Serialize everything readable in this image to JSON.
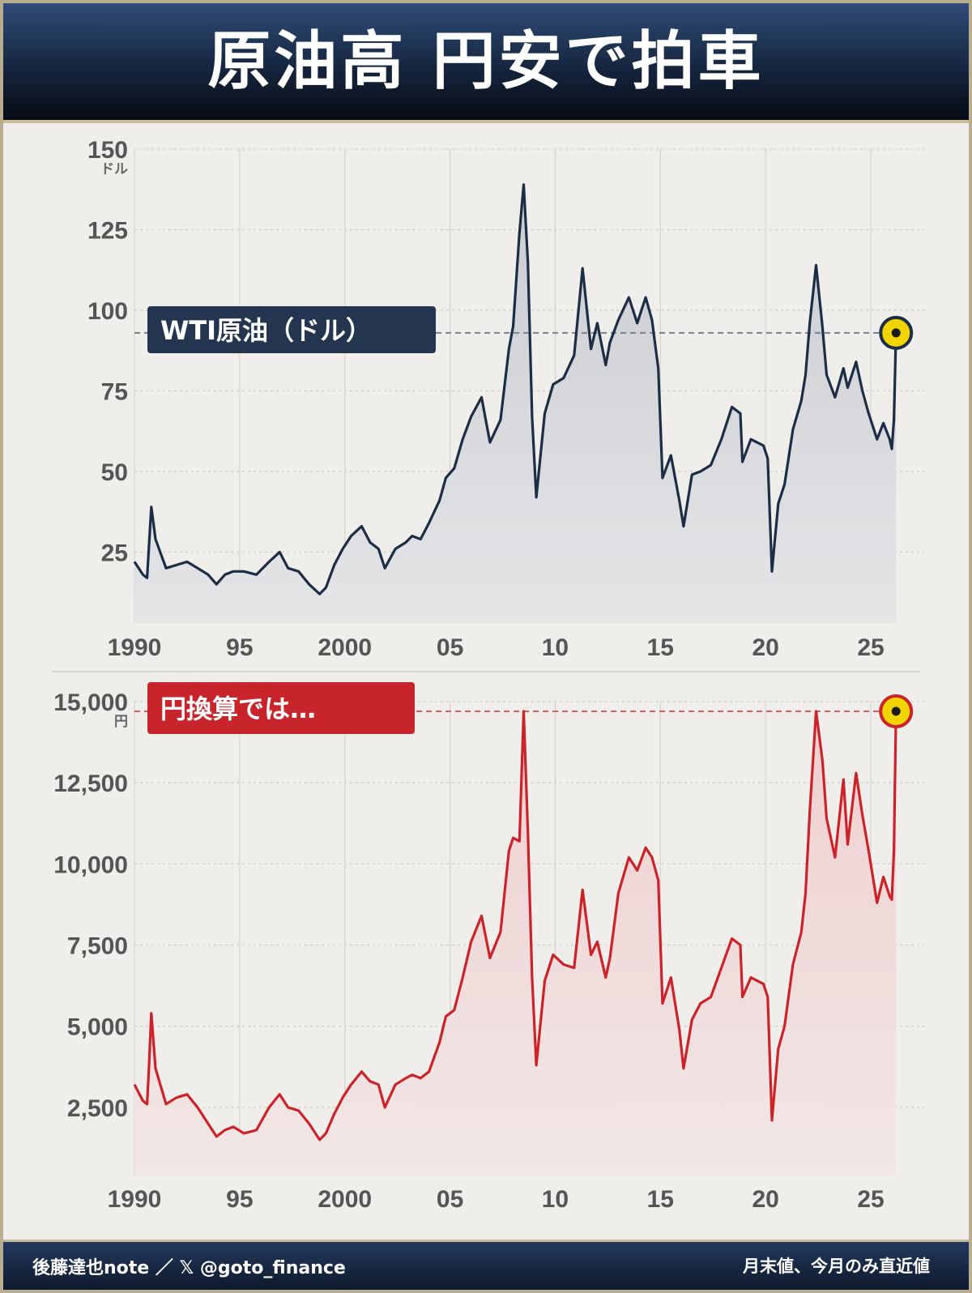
{
  "header": {
    "title": "原油高 円安で拍車"
  },
  "footer": {
    "credit": "後藤達也note ／ 𝕏 @goto_finance",
    "note": "月末値、今月のみ直近値"
  },
  "colors": {
    "background": "#efeeea",
    "header_navy": "#16263f",
    "wti_line": "#1c2d45",
    "yen_line": "#cc2229",
    "marker_fill": "#f2d400"
  },
  "chart_data": [
    {
      "type": "area",
      "label": "WTI原油（ドル）",
      "unit": "ドル",
      "x_tick_labels": [
        "1990",
        "95",
        "2000",
        "05",
        "10",
        "15",
        "20",
        "25"
      ],
      "x_tick_values": [
        1990,
        1995,
        2000,
        2005,
        2010,
        2015,
        2020,
        2025
      ],
      "y_tick_labels": [
        "150",
        "125",
        "100",
        "75",
        "50",
        "25"
      ],
      "y_tick_values": [
        150,
        125,
        100,
        75,
        50,
        25
      ],
      "ylim": [
        3,
        150
      ],
      "xlim": [
        1990,
        2026.5
      ],
      "grid": true,
      "current_marker": {
        "x": 2026.2,
        "y": 93
      },
      "reference_line": 93,
      "series": [
        {
          "x": [
            1990.0,
            1990.4,
            1990.6,
            1990.7,
            1990.8,
            1991.0,
            1991.5,
            1992.0,
            1992.5,
            1993.0,
            1993.5,
            1993.9,
            1994.3,
            1994.7,
            1995.2,
            1995.8,
            1996.4,
            1996.9,
            1997.3,
            1997.8,
            1998.3,
            1998.8,
            1999.1,
            1999.5,
            1999.9,
            2000.3,
            2000.8,
            2001.2,
            2001.6,
            2001.9,
            2002.4,
            2002.9,
            2003.2,
            2003.6,
            2004.0,
            2004.5,
            2004.8,
            2005.2,
            2005.6,
            2006.0,
            2006.5,
            2006.9,
            2007.4,
            2007.8,
            2008.0,
            2008.3,
            2008.5,
            2008.7,
            2008.9,
            2009.1,
            2009.5,
            2009.9,
            2010.4,
            2010.9,
            2011.3,
            2011.7,
            2012.0,
            2012.4,
            2012.6,
            2013.0,
            2013.5,
            2013.9,
            2014.3,
            2014.6,
            2014.9,
            2015.1,
            2015.5,
            2015.9,
            2016.1,
            2016.5,
            2016.9,
            2017.4,
            2017.9,
            2018.4,
            2018.8,
            2018.9,
            2019.3,
            2019.9,
            2020.1,
            2020.3,
            2020.6,
            2020.9,
            2021.3,
            2021.7,
            2021.9,
            2022.1,
            2022.4,
            2022.7,
            2022.9,
            2023.3,
            2023.7,
            2023.9,
            2024.3,
            2024.6,
            2024.9,
            2025.3,
            2025.6,
            2025.9,
            2026.0,
            2026.1,
            2026.2
          ],
          "y": [
            22,
            18,
            17,
            28,
            39,
            29,
            20,
            21,
            22,
            20,
            18,
            15,
            18,
            19,
            19,
            18,
            22,
            25,
            20,
            19,
            15,
            12,
            14,
            21,
            26,
            30,
            33,
            28,
            26,
            20,
            26,
            28,
            30,
            29,
            34,
            41,
            48,
            51,
            60,
            67,
            73,
            59,
            66,
            88,
            95,
            124,
            139,
            115,
            67,
            42,
            68,
            77,
            79,
            86,
            113,
            88,
            96,
            83,
            90,
            97,
            104,
            96,
            104,
            97,
            82,
            48,
            55,
            41,
            33,
            49,
            50,
            52,
            60,
            70,
            68,
            53,
            60,
            58,
            54,
            19,
            40,
            46,
            63,
            72,
            80,
            96,
            114,
            95,
            80,
            73,
            82,
            76,
            84,
            75,
            68,
            60,
            65,
            60,
            57,
            66,
            93
          ]
        }
      ]
    },
    {
      "type": "area",
      "label": "円換算では…",
      "unit": "円",
      "x_tick_labels": [
        "1990",
        "95",
        "2000",
        "05",
        "10",
        "15",
        "20",
        "25"
      ],
      "x_tick_values": [
        1990,
        1995,
        2000,
        2005,
        2010,
        2015,
        2020,
        2025
      ],
      "y_tick_labels": [
        "15,000",
        "12,500",
        "10,000",
        "7,500",
        "5,000",
        "2,500"
      ],
      "y_tick_values": [
        15000,
        12500,
        10000,
        7500,
        5000,
        2500
      ],
      "ylim": [
        400,
        15000
      ],
      "xlim": [
        1990,
        2026.5
      ],
      "grid": true,
      "current_marker": {
        "x": 2026.2,
        "y": 14700
      },
      "reference_line": 14700,
      "series": [
        {
          "x": [
            1990.0,
            1990.4,
            1990.6,
            1990.7,
            1990.8,
            1991.0,
            1991.5,
            1992.0,
            1992.5,
            1993.0,
            1993.5,
            1993.9,
            1994.3,
            1994.7,
            1995.2,
            1995.8,
            1996.4,
            1996.9,
            1997.3,
            1997.8,
            1998.3,
            1998.8,
            1999.1,
            1999.5,
            1999.9,
            2000.3,
            2000.8,
            2001.2,
            2001.6,
            2001.9,
            2002.4,
            2002.9,
            2003.2,
            2003.6,
            2004.0,
            2004.5,
            2004.8,
            2005.2,
            2005.6,
            2006.0,
            2006.5,
            2006.9,
            2007.4,
            2007.8,
            2008.0,
            2008.3,
            2008.5,
            2008.7,
            2008.9,
            2009.1,
            2009.5,
            2009.9,
            2010.4,
            2010.9,
            2011.3,
            2011.7,
            2012.0,
            2012.4,
            2012.6,
            2013.0,
            2013.5,
            2013.9,
            2014.3,
            2014.6,
            2014.9,
            2015.1,
            2015.5,
            2015.9,
            2016.1,
            2016.5,
            2016.9,
            2017.4,
            2017.9,
            2018.4,
            2018.8,
            2018.9,
            2019.3,
            2019.9,
            2020.1,
            2020.3,
            2020.6,
            2020.9,
            2021.3,
            2021.7,
            2021.9,
            2022.1,
            2022.4,
            2022.7,
            2022.9,
            2023.3,
            2023.7,
            2023.9,
            2024.3,
            2024.6,
            2024.9,
            2025.3,
            2025.6,
            2025.9,
            2026.0,
            2026.1,
            2026.2
          ],
          "y": [
            3200,
            2700,
            2600,
            3900,
            5400,
            3700,
            2600,
            2800,
            2900,
            2500,
            2000,
            1600,
            1800,
            1900,
            1700,
            1800,
            2500,
            2900,
            2500,
            2400,
            2000,
            1500,
            1700,
            2300,
            2800,
            3200,
            3600,
            3300,
            3200,
            2500,
            3200,
            3400,
            3500,
            3400,
            3600,
            4500,
            5300,
            5500,
            6500,
            7600,
            8400,
            7100,
            7900,
            10400,
            10800,
            10700,
            14700,
            11000,
            6500,
            3800,
            6400,
            7200,
            6900,
            6800,
            9200,
            7200,
            7600,
            6500,
            7100,
            9100,
            10200,
            9800,
            10500,
            10200,
            9500,
            5700,
            6500,
            4900,
            3700,
            5200,
            5700,
            5900,
            6800,
            7700,
            7500,
            5900,
            6500,
            6300,
            5900,
            2100,
            4300,
            5000,
            6900,
            7900,
            9100,
            11600,
            14700,
            13200,
            11400,
            10200,
            12600,
            10600,
            12800,
            11500,
            10400,
            8800,
            9600,
            9000,
            8900,
            10400,
            14700
          ]
        }
      ]
    }
  ]
}
